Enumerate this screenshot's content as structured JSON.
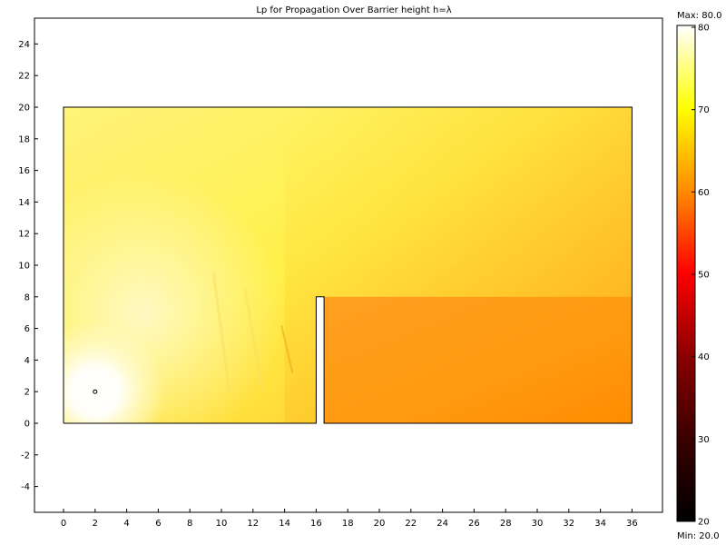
{
  "chart_data": {
    "type": "heatmap",
    "title": "Lp for Propagation Over Barrier height h=λ",
    "xlabel": "",
    "ylabel": "",
    "xlim": [
      -2,
      40
    ],
    "ylim": [
      -6,
      26
    ],
    "x_ticks": [
      0,
      2,
      4,
      6,
      8,
      10,
      12,
      14,
      16,
      18,
      20,
      22,
      24,
      26,
      28,
      30,
      32,
      34,
      36
    ],
    "y_ticks": [
      -4,
      -2,
      0,
      2,
      4,
      6,
      8,
      10,
      12,
      14,
      16,
      18,
      20,
      22,
      24
    ],
    "grid": false,
    "domain": {
      "outline": [
        [
          0,
          0
        ],
        [
          16,
          0
        ],
        [
          16,
          8
        ],
        [
          16.5,
          8
        ],
        [
          16.5,
          0
        ],
        [
          36,
          0
        ],
        [
          36,
          20
        ],
        [
          0,
          20
        ],
        [
          0,
          0
        ]
      ],
      "barrier": {
        "x": [
          16,
          16.5
        ],
        "height": 8
      }
    },
    "source_point": {
      "x": 2,
      "y": 2
    },
    "colorbar": {
      "min": 20,
      "max": 80,
      "ticks": [
        20,
        30,
        40,
        50,
        60,
        70,
        80
      ],
      "max_label": "Max: 80.0",
      "min_label": "Min: 20.0",
      "colormap": "hot",
      "stops": [
        "#000000",
        "#3a0000",
        "#8b0000",
        "#ff0000",
        "#ff8c00",
        "#ffff00",
        "#ffffff"
      ]
    },
    "field_regions": [
      {
        "area": "near source (lower left)",
        "level": 80
      },
      {
        "area": "left region above ground",
        "level": 72
      },
      {
        "area": "top center",
        "level": 67
      },
      {
        "area": "upper right",
        "level": 62
      },
      {
        "area": "shadow zone behind barrier",
        "level": 56
      }
    ]
  }
}
